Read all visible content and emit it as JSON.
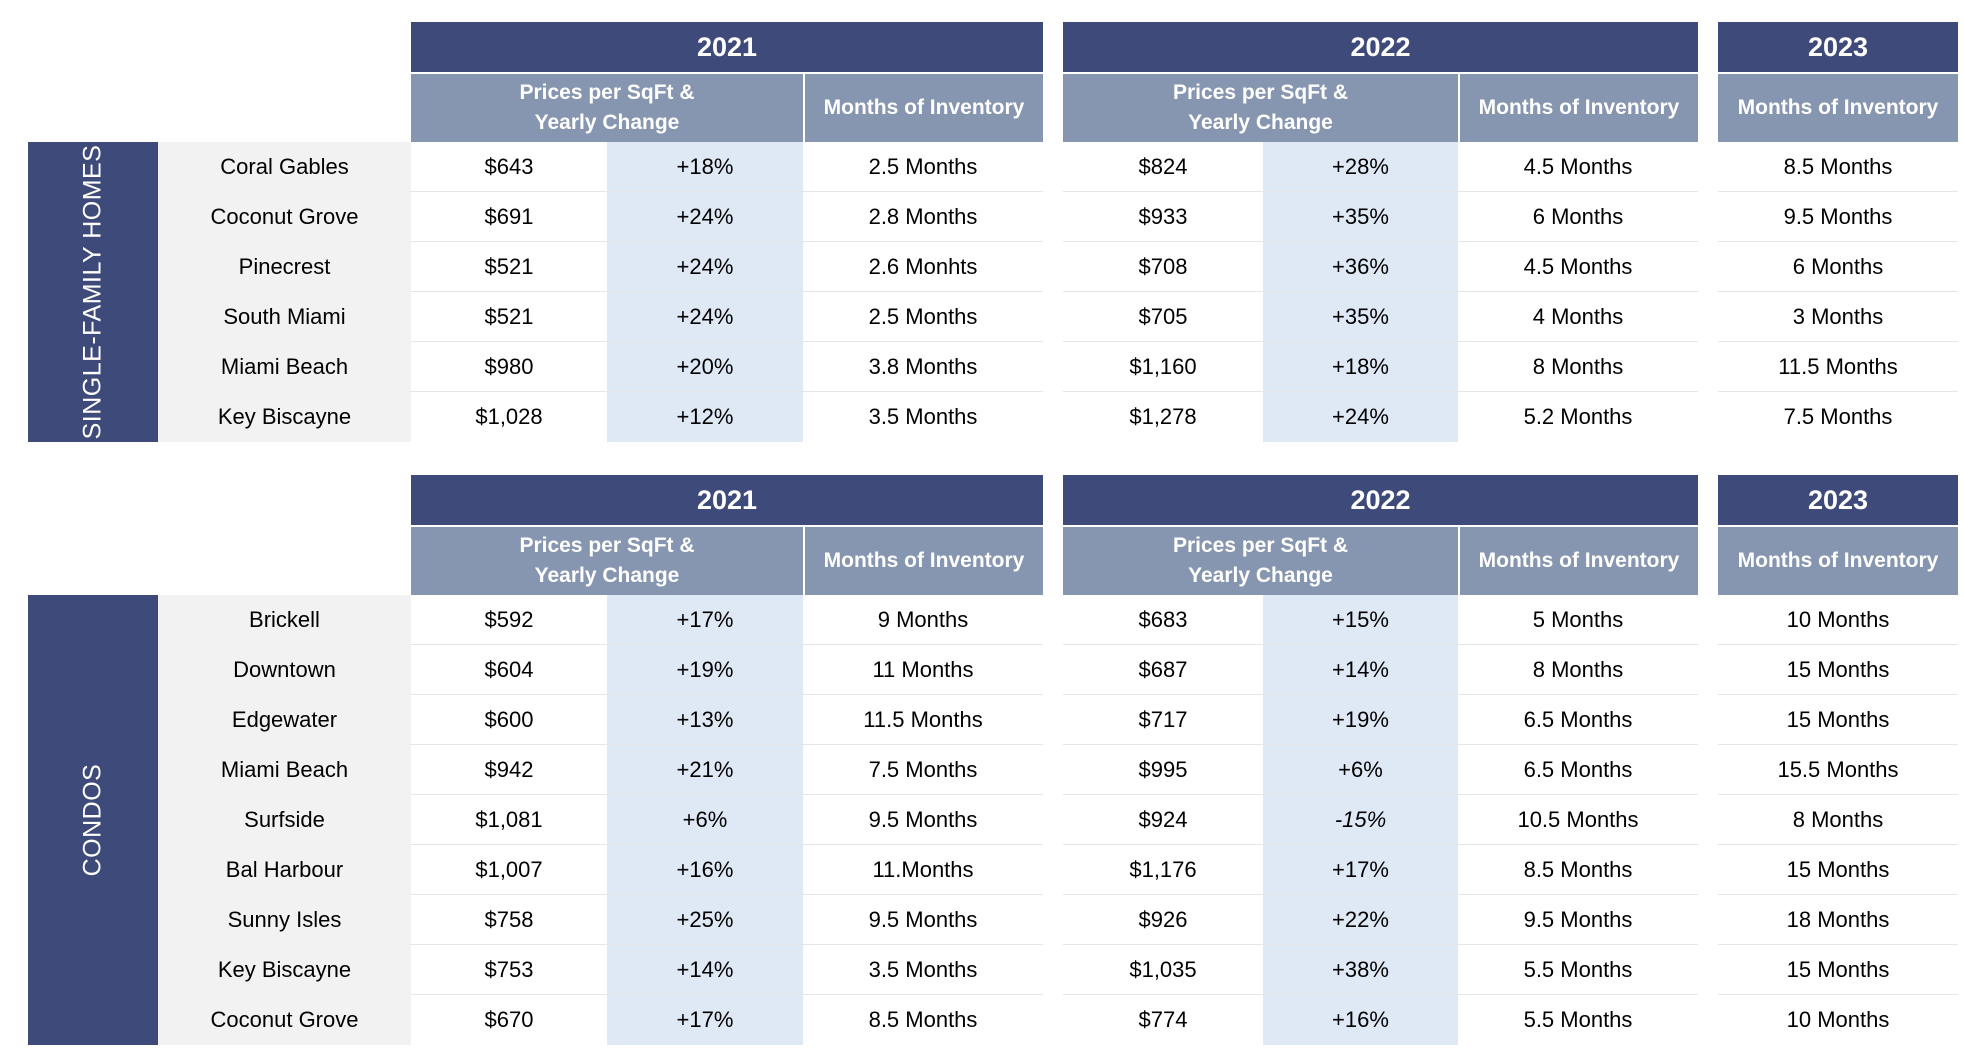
{
  "sections": [
    {
      "label": "SINGLE-FAMILY HOMES",
      "headers": {
        "y2021": "2021",
        "y2022": "2022",
        "y2023": "2023",
        "price_2021": "Prices per SqFt &\nYearly Change",
        "inv_2021": "Months of Inventory",
        "price_2022": "Prices per SqFt &\nYearly Change",
        "inv_2022": "Months of Inventory",
        "inv_2023": "Months of Inventory"
      },
      "rows": [
        {
          "name": "Coral Gables",
          "p21": "$643",
          "c21": "+18%",
          "m21": "2.5 Months",
          "p22": "$824",
          "c22": "+28%",
          "m22": "4.5 Months",
          "m23": "8.5 Months"
        },
        {
          "name": "Coconut Grove",
          "p21": "$691",
          "c21": "+24%",
          "m21": "2.8 Months",
          "p22": "$933",
          "c22": "+35%",
          "m22": "6 Months",
          "m23": "9.5 Months"
        },
        {
          "name": "Pinecrest",
          "p21": "$521",
          "c21": "+24%",
          "m21": "2.6 Monhts",
          "p22": "$708",
          "c22": "+36%",
          "m22": "4.5 Months",
          "m23": "6 Months"
        },
        {
          "name": "South Miami",
          "p21": "$521",
          "c21": "+24%",
          "m21": "2.5 Months",
          "p22": "$705",
          "c22": "+35%",
          "m22": "4 Months",
          "m23": "3 Months"
        },
        {
          "name": "Miami Beach",
          "p21": "$980",
          "c21": "+20%",
          "m21": "3.8 Months",
          "p22": "$1,160",
          "c22": "+18%",
          "m22": "8  Months",
          "m23": "11.5 Months"
        },
        {
          "name": "Key Biscayne",
          "p21": "$1,028",
          "c21": "+12%",
          "m21": "3.5 Months",
          "p22": "$1,278",
          "c22": "+24%",
          "m22": "5.2 Months",
          "m23": "7.5 Months"
        }
      ]
    },
    {
      "label": "CONDOS",
      "headers": {
        "y2021": "2021",
        "y2022": "2022",
        "y2023": "2023",
        "price_2021": "Prices per SqFt &\nYearly Change",
        "inv_2021": "Months of Inventory",
        "price_2022": "Prices per SqFt &\nYearly Change",
        "inv_2022": "Months of Inventory",
        "inv_2023": "Months of Inventory"
      },
      "rows": [
        {
          "name": "Brickell",
          "p21": "$592",
          "c21": "+17%",
          "m21": "9 Months",
          "p22": "$683",
          "c22": "+15%",
          "m22": "5 Months",
          "m23": "10 Months"
        },
        {
          "name": "Downtown",
          "p21": "$604",
          "c21": "+19%",
          "m21": "11 Months",
          "p22": "$687",
          "c22": "+14%",
          "m22": "8 Months",
          "m23": "15 Months"
        },
        {
          "name": "Edgewater",
          "p21": "$600",
          "c21": "+13%",
          "m21": "11.5 Months",
          "p22": "$717",
          "c22": "+19%",
          "m22": "6.5 Months",
          "m23": "15 Months"
        },
        {
          "name": "Miami Beach",
          "p21": "$942",
          "c21": "+21%",
          "m21": "7.5 Months",
          "p22": "$995",
          "c22": "+6%",
          "m22": "6.5 Months",
          "m23": "15.5 Months"
        },
        {
          "name": "Surfside",
          "p21": "$1,081",
          "c21": "+6%",
          "m21": "9.5 Months",
          "p22": "$924",
          "c22": "-15%",
          "m22": "10.5 Months",
          "m23": "8 Months"
        },
        {
          "name": "Bal Harbour",
          "p21": "$1,007",
          "c21": "+16%",
          "m21": "11.Months",
          "p22": "$1,176",
          "c22": "+17%",
          "m22": "8.5 Months",
          "m23": "15 Months"
        },
        {
          "name": "Sunny Isles",
          "p21": "$758",
          "c21": "+25%",
          "m21": "9.5 Months",
          "p22": "$926",
          "c22": "+22%",
          "m22": "9.5 Months",
          "m23": "18 Months"
        },
        {
          "name": "Key Biscayne",
          "p21": "$753",
          "c21": "+14%",
          "m21": "3.5 Months",
          "p22": "$1,035",
          "c22": "+38%",
          "m22": "5.5 Months",
          "m23": "15 Months"
        },
        {
          "name": "Coconut Grove",
          "p21": "$670",
          "c21": "+17%",
          "m21": "8.5 Months",
          "p22": "$774",
          "c22": "+16%",
          "m22": "5.5 Months",
          "m23": "10 Months"
        }
      ]
    }
  ],
  "colors": {
    "header_dark": "#3d4a7a",
    "header_light": "#8796b0",
    "change_shade": "#dfe8f5",
    "name_bg": "#f2f2f2"
  }
}
